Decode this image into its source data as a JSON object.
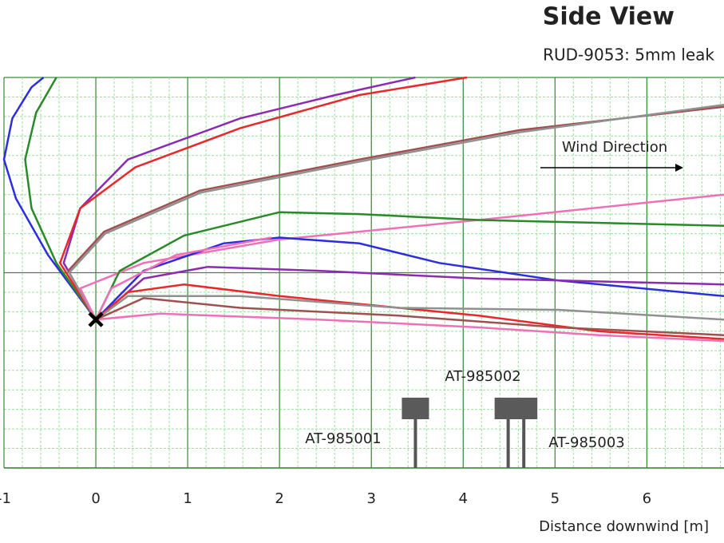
{
  "chart_data": {
    "type": "line",
    "title": "Side View",
    "subtitle": "RUD-9053: 5mm leak",
    "x_label": "Distance downwind [m]",
    "annotation": "Wind Direction",
    "xlim": [
      -1,
      6.84
    ],
    "xticks": [
      -1,
      0,
      1,
      2,
      3,
      4,
      5,
      6
    ],
    "ylim": [
      0,
      2
    ],
    "grid": true,
    "source": {
      "x": 0,
      "y": 0.76
    },
    "series": [
      {
        "color": "#2d2de0",
        "x": [
          0,
          -0.52,
          -0.87,
          -1.0,
          -0.91,
          -0.7,
          -0.57
        ],
        "values": [
          0.76,
          1.09,
          1.38,
          1.58,
          1.79,
          1.95,
          2.0
        ]
      },
      {
        "color": "#2a8a2a",
        "x": [
          0,
          -0.43,
          -0.7,
          -0.77,
          -0.65,
          -0.43
        ],
        "values": [
          0.76,
          1.05,
          1.33,
          1.58,
          1.82,
          2.0
        ]
      },
      {
        "color": "#8a2bb0",
        "x": [
          0,
          -0.35,
          -0.17,
          0.35,
          1.57,
          2.61,
          3.48
        ],
        "values": [
          0.76,
          1.05,
          1.33,
          1.58,
          1.79,
          1.91,
          2.0
        ]
      },
      {
        "color": "#e8282a",
        "x": [
          0,
          -0.39,
          -0.17,
          0.43,
          1.57,
          2.87,
          4.04
        ],
        "values": [
          0.76,
          1.05,
          1.33,
          1.54,
          1.74,
          1.91,
          2.0
        ]
      },
      {
        "color": "#a05050",
        "x": [
          0,
          -0.3,
          0.09,
          1.13,
          2.87,
          4.61,
          6.84
        ],
        "values": [
          0.76,
          1.01,
          1.21,
          1.42,
          1.58,
          1.73,
          1.85
        ]
      },
      {
        "color": "#909090",
        "x": [
          0,
          -0.29,
          0.1,
          1.14,
          2.88,
          4.62,
          6.84
        ],
        "values": [
          0.76,
          1.0,
          1.2,
          1.41,
          1.57,
          1.72,
          1.86
        ]
      },
      {
        "color": "#f070b8",
        "x": [
          0,
          -0.17,
          0.52,
          2.0,
          4.17,
          6.84
        ],
        "values": [
          0.76,
          0.92,
          1.05,
          1.17,
          1.27,
          1.4
        ]
      },
      {
        "color": "#2a8a2a",
        "x": [
          0,
          0.26,
          0.96,
          2.0,
          2.87,
          4.17,
          6.84
        ],
        "values": [
          0.76,
          1.01,
          1.19,
          1.31,
          1.3,
          1.27,
          1.24
        ]
      },
      {
        "color": "#2d2de0",
        "x": [
          0,
          0.52,
          1.39,
          2.0,
          2.87,
          3.74,
          5.04,
          6.84
        ],
        "values": [
          0.76,
          1.01,
          1.15,
          1.18,
          1.15,
          1.05,
          0.96,
          0.88
        ]
      },
      {
        "color": "#f070b8",
        "x": [
          0,
          0.17,
          0.87,
          1.91
        ],
        "values": [
          0.76,
          0.92,
          1.09,
          1.18
        ]
      },
      {
        "color": "#8a2bb0",
        "x": [
          0,
          0.52,
          1.22,
          2.43,
          4.17,
          6.84
        ],
        "values": [
          0.76,
          0.97,
          1.03,
          1.01,
          0.97,
          0.94
        ]
      },
      {
        "color": "#e8282a",
        "x": [
          0,
          0.35,
          0.96,
          2.0,
          3.3,
          4.17,
          5.48,
          6.84
        ],
        "values": [
          0.76,
          0.9,
          0.94,
          0.88,
          0.82,
          0.78,
          0.7,
          0.66
        ]
      },
      {
        "color": "#909090",
        "x": [
          0,
          0.35,
          1.57,
          3.3,
          5.04,
          6.84
        ],
        "values": [
          0.76,
          0.88,
          0.88,
          0.82,
          0.81,
          0.76
        ]
      },
      {
        "color": "#a05050",
        "x": [
          0,
          0.52,
          1.57,
          3.3,
          5.04,
          6.84
        ],
        "values": [
          0.76,
          0.87,
          0.82,
          0.78,
          0.72,
          0.68
        ]
      },
      {
        "color": "#f070b8",
        "x": [
          0,
          0.7,
          2.43,
          4.17,
          5.48,
          6.84
        ],
        "values": [
          0.76,
          0.79,
          0.76,
          0.72,
          0.68,
          0.65
        ]
      }
    ],
    "sensors": [
      {
        "label": "AT-985001",
        "x": 3.48
      },
      {
        "label": "AT-985002",
        "x": 4.49
      },
      {
        "label": "AT-985003",
        "x": 4.66
      }
    ]
  }
}
